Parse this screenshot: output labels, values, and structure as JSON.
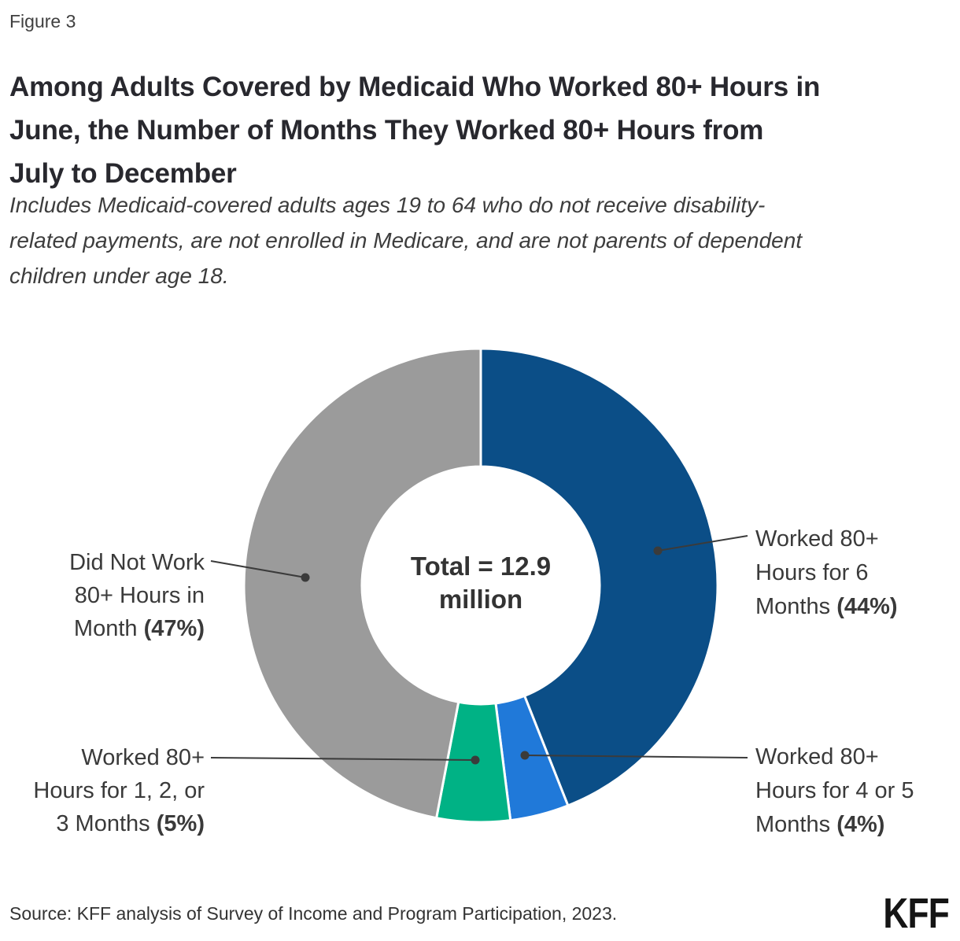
{
  "figure_label": "Figure 3",
  "header": {
    "title_lines": [
      "Among Adults Covered by Medicaid Who Worked 80+ Hours in",
      "June, the Number of Months They Worked 80+ Hours from",
      "July to December"
    ],
    "subtitle_lines": [
      "Includes Medicaid-covered adults ages 19 to 64 who do not receive disability-",
      "related payments, are not enrolled in Medicare, and are not parents of dependent",
      "children under age 18."
    ]
  },
  "chart_data": {
    "type": "pie",
    "subtype": "donut",
    "title": "Among Adults Covered by Medicaid Who Worked 80+ Hours in June, the Number of Months They Worked 80+ Hours from July to December",
    "subtitle": "Includes Medicaid-covered adults ages 19 to 64 who do not receive disability-related payments, are not enrolled in Medicare, and are not parents of dependent children under age 18.",
    "total_label": "Total = 12.9 million",
    "center_label": {
      "line1": "Total = 12.9",
      "line2": "million"
    },
    "start_angle_deg": 0,
    "direction": "clockwise",
    "legend_position": "callouts",
    "segments": [
      {
        "id": "6-months",
        "name": "Worked 80+ Hours for 6 Months",
        "value": 44,
        "unit": "%",
        "color": "#0B4E87"
      },
      {
        "id": "4-5-months",
        "name": "Worked 80+ Hours for 4 or 5 Months",
        "value": 4,
        "unit": "%",
        "color": "#2079D9"
      },
      {
        "id": "1-2-3-months",
        "name": "Worked 80+ Hours for 1, 2, or 3 Months",
        "value": 5,
        "unit": "%",
        "color": "#00B285"
      },
      {
        "id": "did-not-work",
        "name": "Did Not Work 80+ Hours in Month",
        "value": 47,
        "unit": "%",
        "color": "#9B9B9B"
      }
    ]
  },
  "callouts": {
    "right_top": {
      "line1": "Worked 80+",
      "line2": "Hours for 6",
      "line3": "Months",
      "pct": "(44%)"
    },
    "right_bottom": {
      "line1": "Worked 80+",
      "line2": "Hours for 4 or 5",
      "line3": "Months",
      "pct": "(4%)"
    },
    "left_top": {
      "line1": "Did Not Work",
      "line2": "80+ Hours in",
      "line3": "Month",
      "pct": "(47%)"
    },
    "left_bottom": {
      "line1": "Worked 80+",
      "line2": "Hours for 1, 2, or",
      "line3": "3 Months",
      "pct": "(5%)"
    }
  },
  "source": "Source: KFF analysis of Survey of Income and Program Participation, 2023.",
  "logo_text": "KFF",
  "colors": {
    "accent_dark_blue": "#0B4E87",
    "accent_light_blue": "#2079D9",
    "accent_green": "#00B285",
    "neutral_gray": "#9B9B9B",
    "leader_line": "#3b3b3b",
    "text_dark": "#28282e"
  }
}
